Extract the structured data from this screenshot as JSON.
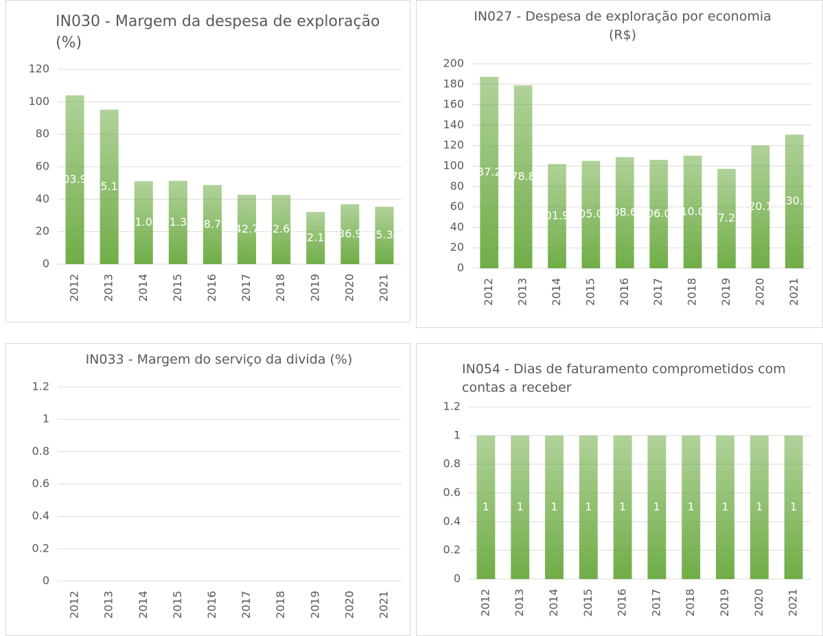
{
  "chart_data": [
    {
      "type": "bar",
      "title": "IN030 - Margem da despesa de exploração (%)",
      "categories": [
        "2012",
        "2013",
        "2014",
        "2015",
        "2016",
        "2017",
        "2018",
        "2019",
        "2020",
        "2021"
      ],
      "values": [
        103.94,
        95.16,
        51.08,
        51.31,
        48.73,
        42.7,
        42.66,
        32.14,
        36.9,
        35.38
      ],
      "color": "#70ad47",
      "ylim": [
        0,
        120
      ],
      "yticks": [
        0,
        20,
        40,
        60,
        80,
        100,
        120
      ],
      "grid": true
    },
    {
      "type": "bar",
      "title": "IN027 - Despesa de exploração por economia (R$)",
      "categories": [
        "2012",
        "2013",
        "2014",
        "2015",
        "2016",
        "2017",
        "2018",
        "2019",
        "2020",
        "2021"
      ],
      "values": [
        187.28,
        178.85,
        101.92,
        105.04,
        108.67,
        106.07,
        110.09,
        97.28,
        120.15,
        130.7
      ],
      "color": "#70ad47",
      "ylim": [
        0,
        200
      ],
      "yticks": [
        0,
        20,
        40,
        60,
        80,
        100,
        120,
        140,
        160,
        180,
        200
      ],
      "grid": true
    },
    {
      "type": "bar",
      "title": "IN033 - Margem do serviço da divida (%)",
      "categories": [
        "2012",
        "2013",
        "2014",
        "2015",
        "2016",
        "2017",
        "2018",
        "2019",
        "2020",
        "2021"
      ],
      "values": [
        null,
        null,
        null,
        null,
        null,
        null,
        null,
        null,
        null,
        null
      ],
      "color": "#70ad47",
      "ylim": [
        0,
        1.2
      ],
      "yticks": [
        0,
        0.2,
        0.4,
        0.6,
        0.8,
        1,
        1.2
      ],
      "grid": true
    },
    {
      "type": "bar",
      "title": "IN054 - Dias de faturamento comprometidos com contas a receber",
      "categories": [
        "2012",
        "2013",
        "2014",
        "2015",
        "2016",
        "2017",
        "2018",
        "2019",
        "2020",
        "2021"
      ],
      "values": [
        1,
        1,
        1,
        1,
        1,
        1,
        1,
        1,
        1,
        1
      ],
      "color": "#70ad47",
      "ylim": [
        0,
        1.2
      ],
      "yticks": [
        0,
        0.2,
        0.4,
        0.6,
        0.8,
        1,
        1.2
      ],
      "grid": true
    }
  ]
}
